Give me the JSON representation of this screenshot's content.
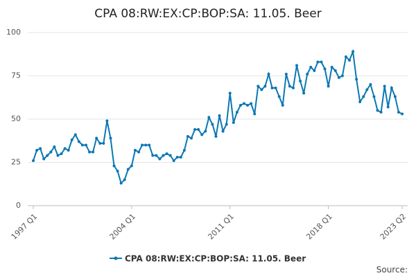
{
  "chart_data": {
    "type": "line",
    "title": "CPA 08:RW:EX:CP:BOP:SA: 11.05. Beer",
    "categories": [
      "1997 Q1",
      null,
      null,
      null,
      null,
      null,
      null,
      null,
      null,
      null,
      null,
      null,
      null,
      null,
      null,
      null,
      null,
      null,
      null,
      null,
      null,
      null,
      null,
      null,
      null,
      null,
      null,
      null,
      "2004 Q1",
      null,
      null,
      null,
      null,
      null,
      null,
      null,
      null,
      null,
      null,
      null,
      null,
      null,
      null,
      null,
      null,
      null,
      null,
      null,
      null,
      null,
      null,
      null,
      null,
      null,
      null,
      null,
      "2011 Q1",
      null,
      null,
      null,
      null,
      null,
      null,
      null,
      null,
      null,
      null,
      null,
      null,
      null,
      null,
      null,
      null,
      null,
      null,
      null,
      null,
      null,
      null,
      null,
      null,
      null,
      null,
      null,
      "2018 Q1",
      null,
      null,
      null,
      null,
      null,
      null,
      null,
      null,
      null,
      null,
      null,
      null,
      null,
      null,
      null,
      null,
      null,
      null,
      null,
      null,
      "2023 Q2"
    ],
    "series": [
      {
        "name": "CPA 08:RW:EX:CP:BOP:SA: 11.05. Beer",
        "color": "#0a77b3",
        "values": [
          26,
          32,
          33,
          27,
          29,
          31,
          34,
          29,
          30,
          33,
          32,
          38,
          41,
          37,
          35,
          35,
          31,
          31,
          39,
          36,
          36,
          49,
          39,
          23,
          20,
          13,
          15,
          21,
          23,
          32,
          31,
          35,
          35,
          35,
          29,
          29,
          27,
          29,
          30,
          29,
          26,
          28,
          28,
          32,
          40,
          39,
          44,
          44,
          41,
          43,
          51,
          47,
          40,
          52,
          43,
          47,
          65,
          48,
          54,
          58,
          59,
          58,
          59,
          53,
          69,
          67,
          69,
          76,
          68,
          68,
          63,
          58,
          76,
          69,
          68,
          81,
          72,
          65,
          76,
          80,
          78,
          83,
          83,
          79,
          69,
          80,
          78,
          74,
          75,
          86,
          84,
          89,
          73,
          60,
          63,
          67,
          70,
          63,
          55,
          54,
          69,
          57,
          68,
          63,
          54,
          53
        ]
      }
    ],
    "ylim": [
      0,
      100
    ],
    "yticks": [
      0,
      25,
      50,
      75,
      100
    ],
    "grid": true,
    "source": "Source:"
  }
}
